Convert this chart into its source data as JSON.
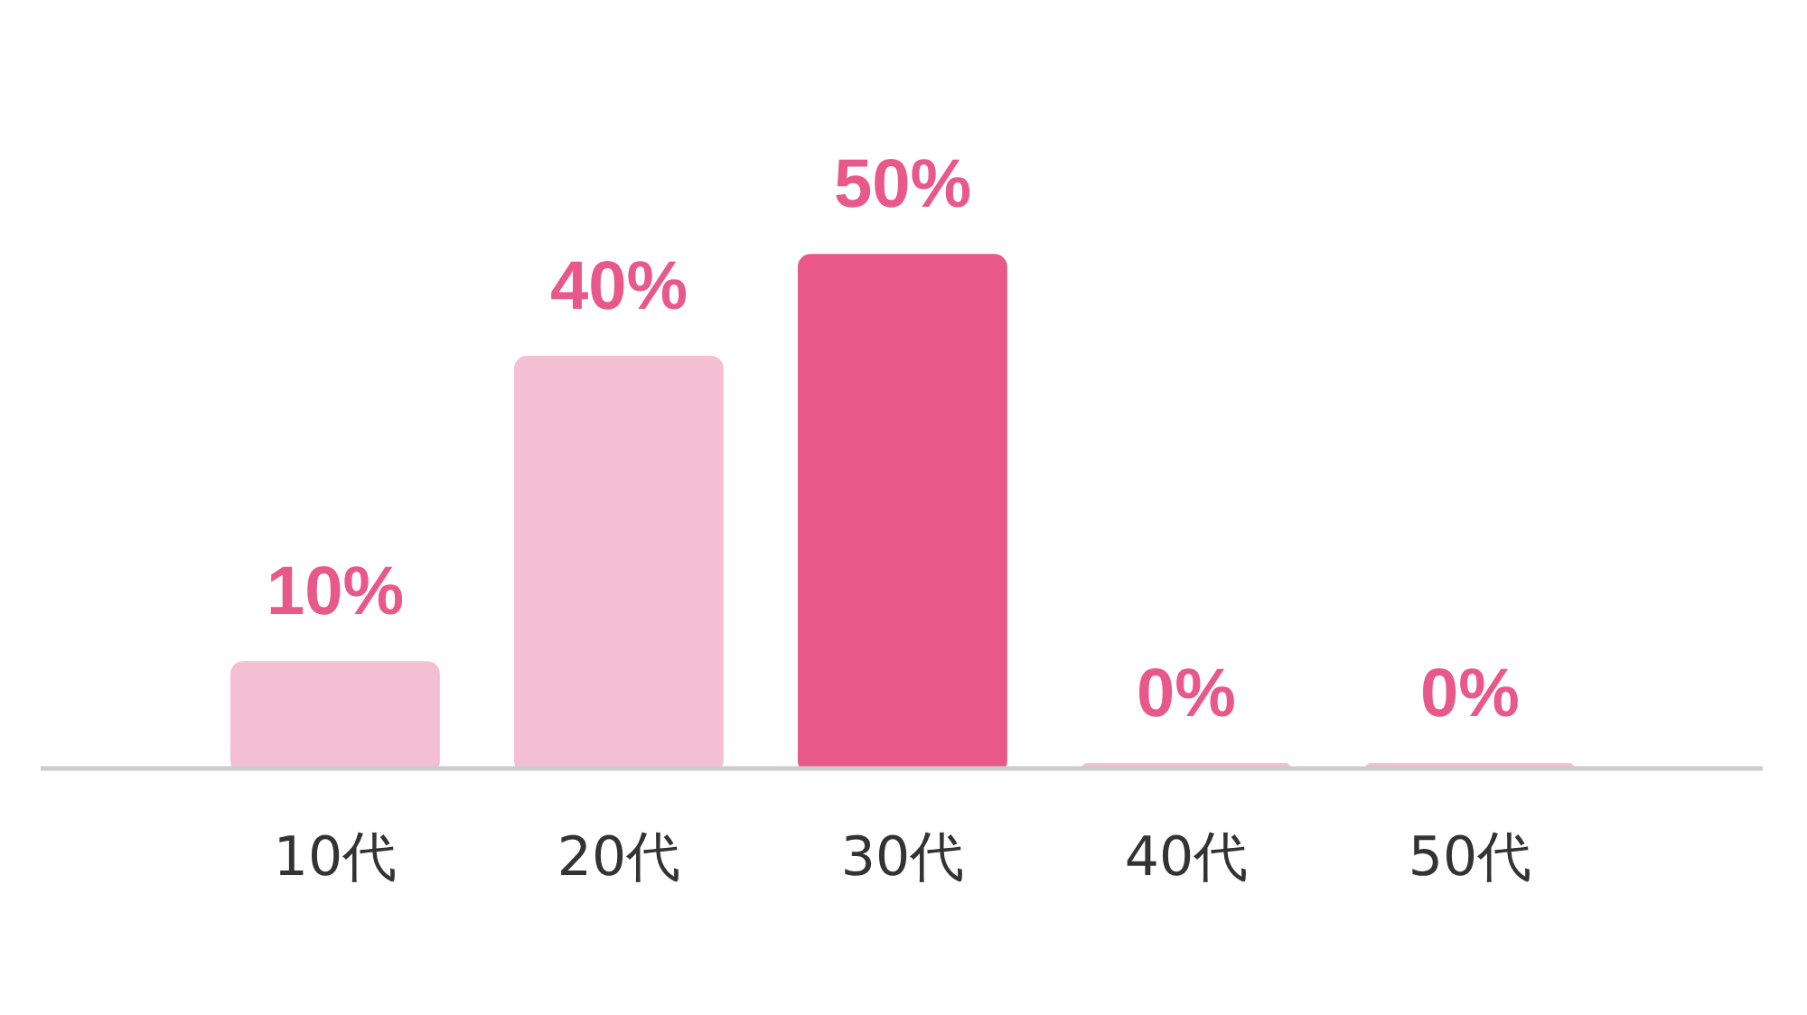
{
  "chart_data": {
    "type": "bar",
    "categories": [
      "10代",
      "20代",
      "30代",
      "40代",
      "50代"
    ],
    "values": [
      10,
      40,
      50,
      0,
      0
    ],
    "colors": [
      "#f5bfd3",
      "#f5bfd3",
      "#e8598a",
      "#f5bfd3",
      "#f5bfd3"
    ],
    "value_labels": [
      "10%",
      "40%",
      "50%",
      "0%",
      "0%"
    ],
    "tick_labels": "x"
  }
}
